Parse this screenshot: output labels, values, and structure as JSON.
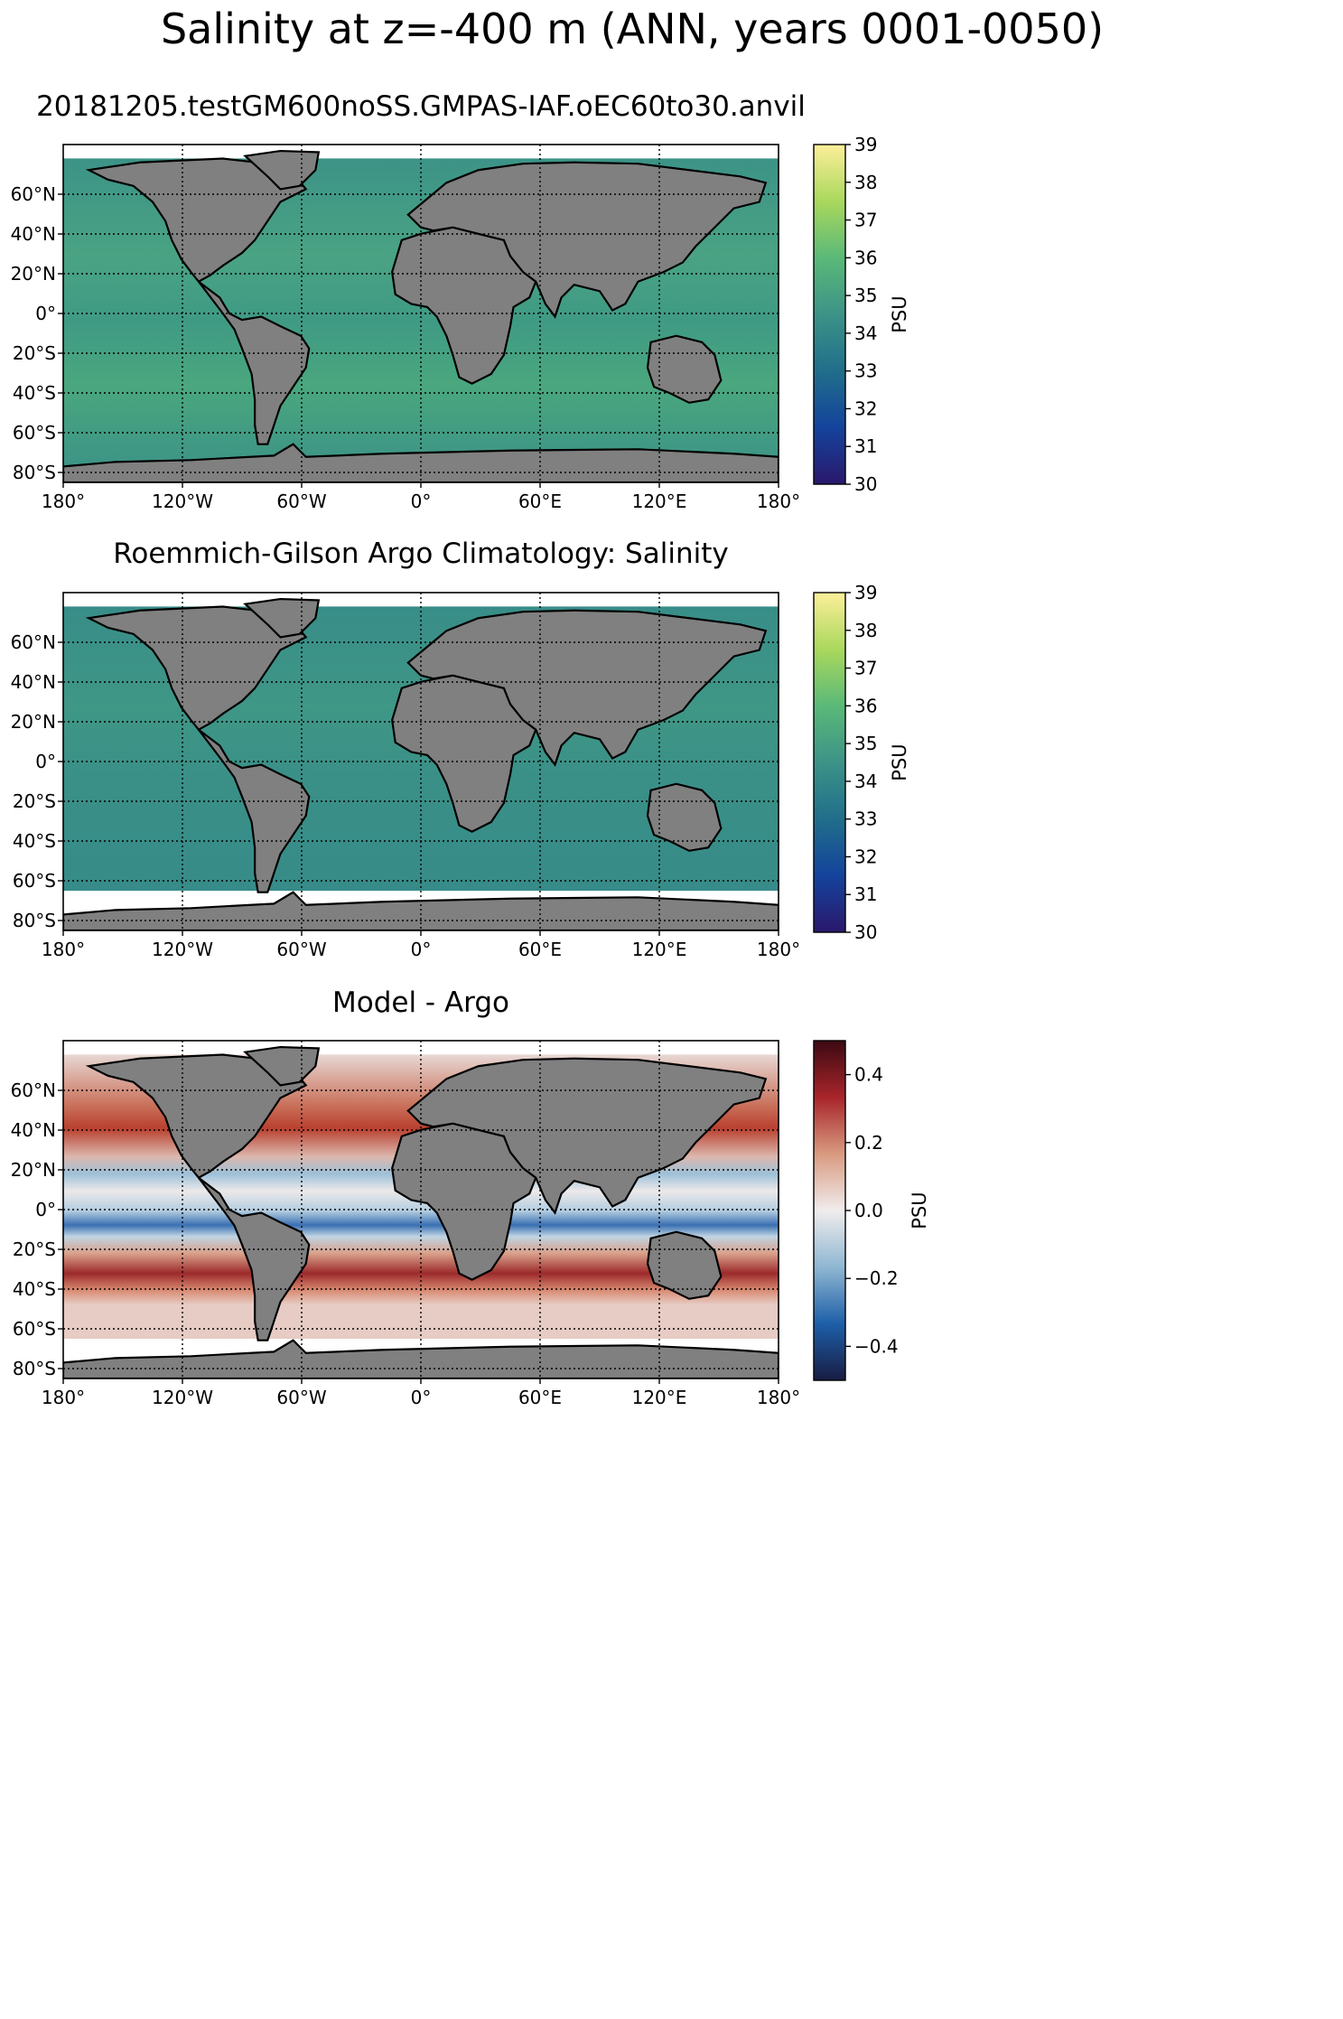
{
  "figure": {
    "suptitle": "Salinity at z=-400 m (ANN, years 0001-0050)"
  },
  "colors": {
    "land": "#808080",
    "nodata": "#ffffff",
    "haline": [
      "#2a186c",
      "#14439c",
      "#206e8b",
      "#3c9387",
      "#5ab978",
      "#aad85c",
      "#fdef9a"
    ],
    "balance": [
      "#181c43",
      "#1d5fa8",
      "#8fb7d2",
      "#f0ecec",
      "#d99a80",
      "#a8252a",
      "#3c0912"
    ]
  },
  "panels": [
    {
      "id": "model",
      "title": "20181205.testGM600noSS.GMPAS-IAF.oEC60to30.anvil",
      "colormap": "haline",
      "colorbar": {
        "ticks": [
          "39",
          "38",
          "37",
          "36",
          "35",
          "34",
          "33",
          "32",
          "31",
          "30"
        ],
        "label": "PSU",
        "range": [
          30,
          39
        ]
      },
      "lat_ticks": [
        "60°N",
        "40°N",
        "20°N",
        "0°",
        "20°S",
        "40°S",
        "60°S",
        "80°S"
      ],
      "lon_ticks": [
        "180°",
        "120°W",
        "60°W",
        "0°",
        "60°E",
        "120°E",
        "180°"
      ],
      "data_extent_south": -85
    },
    {
      "id": "obs",
      "title": "Roemmich-Gilson Argo Climatology: Salinity",
      "colormap": "haline",
      "colorbar": {
        "ticks": [
          "39",
          "38",
          "37",
          "36",
          "35",
          "34",
          "33",
          "32",
          "31",
          "30"
        ],
        "label": "PSU",
        "range": [
          30,
          39
        ]
      },
      "lat_ticks": [
        "60°N",
        "40°N",
        "20°N",
        "0°",
        "20°S",
        "40°S",
        "60°S",
        "80°S"
      ],
      "lon_ticks": [
        "180°",
        "120°W",
        "60°W",
        "0°",
        "60°E",
        "120°E",
        "180°"
      ],
      "data_extent_south": -65
    },
    {
      "id": "bias",
      "title": "Model - Argo",
      "colormap": "balance",
      "colorbar": {
        "ticks": [
          "0.4",
          "0.2",
          "0.0",
          "−0.2",
          "−0.4"
        ],
        "label": "PSU",
        "range": [
          -0.5,
          0.5
        ]
      },
      "lat_ticks": [
        "60°N",
        "40°N",
        "20°N",
        "0°",
        "20°S",
        "40°S",
        "60°S",
        "80°S"
      ],
      "lon_ticks": [
        "180°",
        "120°W",
        "60°W",
        "0°",
        "60°E",
        "120°E",
        "180°"
      ],
      "data_extent_south": -65
    }
  ]
}
